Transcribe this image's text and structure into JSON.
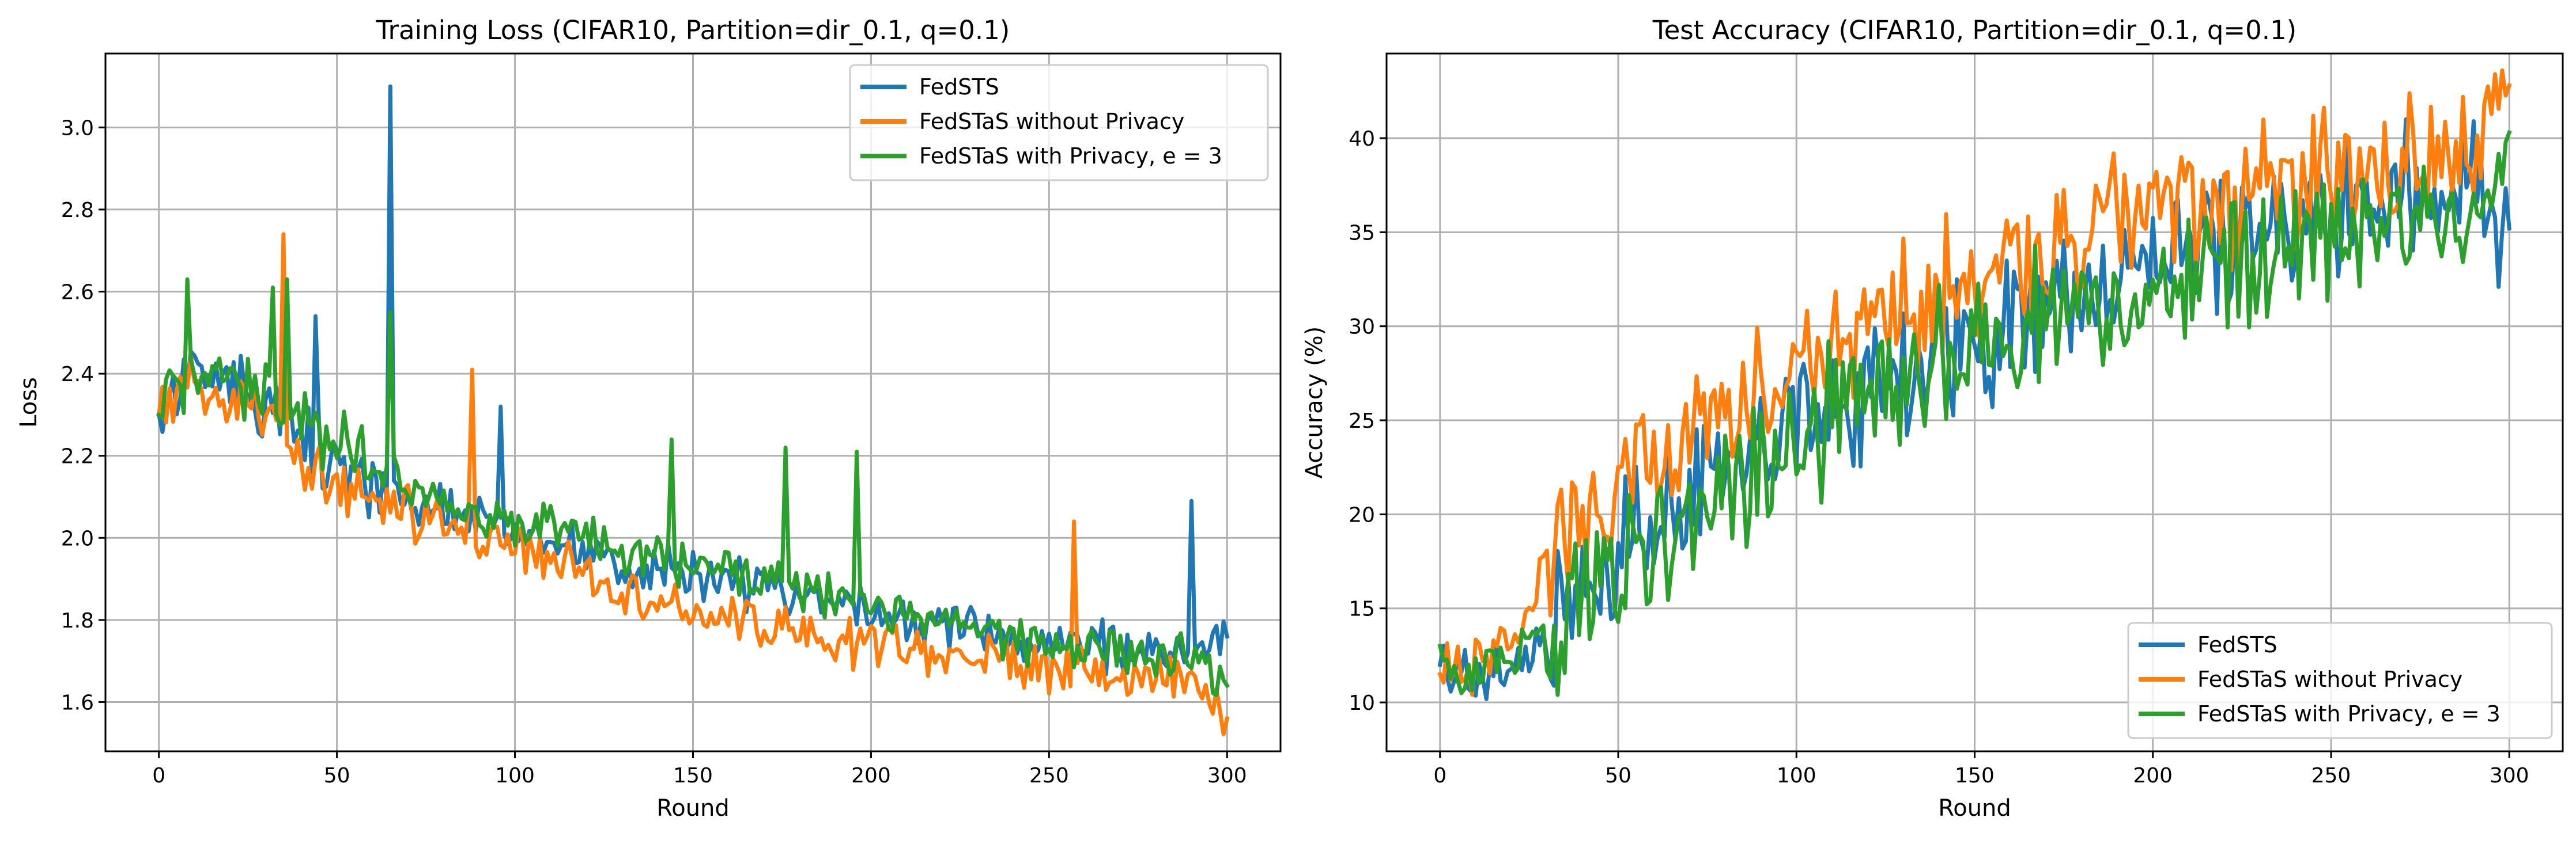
{
  "chart_data": [
    {
      "type": "line",
      "title": "Training Loss (CIFAR10, Partition=dir_0.1, q=0.1)",
      "xlabel": "Round",
      "ylabel": "Loss",
      "xlim": [
        -15,
        315
      ],
      "ylim": [
        1.48,
        3.18
      ],
      "xticks": [
        0,
        50,
        100,
        150,
        200,
        250,
        300
      ],
      "xtick_labels": [
        "0",
        "50",
        "100",
        "150",
        "200",
        "250",
        "300"
      ],
      "yticks": [
        1.6,
        1.8,
        2.0,
        2.2,
        2.4,
        2.6,
        2.8,
        3.0
      ],
      "ytick_labels": [
        "1.6",
        "1.8",
        "2.0",
        "2.2",
        "2.4",
        "2.6",
        "2.8",
        "3.0"
      ],
      "grid": true,
      "legend_position": "top-right",
      "noise": 0.1,
      "seed": 11,
      "series": [
        {
          "name": "FedSTS",
          "color": "#1f77b4",
          "x": [
            0,
            10,
            20,
            30,
            40,
            50,
            60,
            70,
            80,
            90,
            100,
            110,
            120,
            130,
            140,
            150,
            160,
            170,
            180,
            190,
            200,
            210,
            220,
            230,
            240,
            250,
            260,
            270,
            280,
            290,
            300
          ],
          "y": [
            2.3,
            2.42,
            2.38,
            2.33,
            2.26,
            2.18,
            2.13,
            2.09,
            2.07,
            2.04,
            2.01,
            1.98,
            1.96,
            1.95,
            1.93,
            1.92,
            1.9,
            1.87,
            1.85,
            1.83,
            1.82,
            1.8,
            1.79,
            1.77,
            1.76,
            1.75,
            1.74,
            1.73,
            1.72,
            1.71,
            1.76
          ],
          "peaks": [
            [
              65,
              3.1
            ],
            [
              44,
              2.54
            ],
            [
              96,
              2.32
            ],
            [
              290,
              2.09
            ]
          ]
        },
        {
          "name": "FedSTaS without Privacy",
          "color": "#ff7f0e",
          "x": [
            0,
            10,
            20,
            30,
            40,
            50,
            60,
            70,
            80,
            90,
            100,
            110,
            120,
            130,
            140,
            150,
            160,
            170,
            180,
            190,
            200,
            210,
            220,
            230,
            240,
            250,
            260,
            270,
            280,
            290,
            300
          ],
          "y": [
            2.3,
            2.38,
            2.33,
            2.28,
            2.17,
            2.12,
            2.09,
            2.06,
            2.04,
            2.01,
            1.98,
            1.95,
            1.92,
            1.88,
            1.85,
            1.82,
            1.8,
            1.78,
            1.76,
            1.75,
            1.74,
            1.73,
            1.72,
            1.71,
            1.7,
            1.69,
            1.68,
            1.67,
            1.66,
            1.65,
            1.56
          ],
          "peaks": [
            [
              35,
              2.74
            ],
            [
              88,
              2.41
            ],
            [
              257,
              2.04
            ]
          ]
        },
        {
          "name": "FedSTaS with Privacy, e = 3",
          "color": "#2ca02c",
          "x": [
            0,
            10,
            20,
            30,
            40,
            50,
            60,
            70,
            80,
            90,
            100,
            110,
            120,
            130,
            140,
            150,
            160,
            170,
            180,
            190,
            200,
            210,
            220,
            230,
            240,
            250,
            260,
            270,
            280,
            290,
            300
          ],
          "y": [
            2.3,
            2.42,
            2.4,
            2.35,
            2.27,
            2.23,
            2.18,
            2.13,
            2.09,
            2.06,
            2.04,
            2.02,
            2.0,
            1.98,
            1.96,
            1.94,
            1.92,
            1.9,
            1.88,
            1.86,
            1.84,
            1.82,
            1.8,
            1.78,
            1.76,
            1.74,
            1.73,
            1.72,
            1.71,
            1.7,
            1.64
          ],
          "peaks": [
            [
              8,
              2.63
            ],
            [
              32,
              2.61
            ],
            [
              36,
              2.63
            ],
            [
              65,
              2.55
            ],
            [
              144,
              2.24
            ],
            [
              176,
              2.22
            ],
            [
              196,
              2.21
            ]
          ]
        }
      ]
    },
    {
      "type": "line",
      "title": "Test Accuracy (CIFAR10, Partition=dir_0.1, q=0.1)",
      "xlabel": "Round",
      "ylabel": "Accuracy (%)",
      "xlim": [
        -15,
        315
      ],
      "ylim": [
        7.4,
        44.5
      ],
      "xticks": [
        0,
        50,
        100,
        150,
        200,
        250,
        300
      ],
      "xtick_labels": [
        "0",
        "50",
        "100",
        "150",
        "200",
        "250",
        "300"
      ],
      "yticks": [
        10,
        15,
        20,
        25,
        30,
        35,
        40
      ],
      "ytick_labels": [
        "10",
        "15",
        "20",
        "25",
        "30",
        "35",
        "40"
      ],
      "grid": true,
      "legend_position": "bottom-right",
      "noise": 5.5,
      "seed": 23,
      "series": [
        {
          "name": "FedSTS",
          "color": "#1f77b4",
          "x": [
            0,
            10,
            20,
            30,
            40,
            50,
            60,
            70,
            80,
            90,
            100,
            110,
            120,
            130,
            140,
            150,
            160,
            170,
            180,
            190,
            200,
            210,
            220,
            230,
            240,
            250,
            260,
            270,
            280,
            290,
            300
          ],
          "y": [
            12.0,
            11.0,
            12.0,
            14.0,
            16.0,
            18.0,
            19.5,
            21.0,
            22.5,
            23.5,
            25.0,
            26.0,
            27.0,
            28.0,
            29.0,
            29.5,
            30.5,
            31.5,
            32.0,
            33.0,
            33.5,
            34.0,
            34.5,
            35.0,
            35.5,
            36.0,
            36.5,
            37.0,
            37.0,
            37.5,
            35.2
          ]
        },
        {
          "name": "FedSTaS without Privacy",
          "color": "#ff7f0e",
          "x": [
            0,
            10,
            20,
            30,
            40,
            50,
            60,
            70,
            80,
            90,
            100,
            110,
            120,
            130,
            140,
            150,
            160,
            170,
            180,
            190,
            200,
            210,
            220,
            230,
            240,
            250,
            260,
            270,
            280,
            290,
            300
          ],
          "y": [
            11.5,
            12.0,
            14.0,
            17.0,
            20.0,
            22.0,
            23.0,
            24.0,
            25.5,
            26.5,
            28.0,
            29.0,
            30.0,
            31.0,
            32.0,
            33.0,
            33.5,
            34.5,
            35.0,
            35.5,
            36.0,
            36.5,
            37.0,
            37.5,
            38.0,
            38.5,
            38.5,
            39.0,
            39.0,
            39.5,
            42.8
          ]
        },
        {
          "name": "FedSTaS with Privacy, e = 3",
          "color": "#2ca02c",
          "x": [
            0,
            10,
            20,
            30,
            40,
            50,
            60,
            70,
            80,
            90,
            100,
            110,
            120,
            130,
            140,
            150,
            160,
            170,
            180,
            190,
            200,
            210,
            220,
            230,
            240,
            250,
            260,
            270,
            280,
            290,
            300
          ],
          "y": [
            13.0,
            11.5,
            12.5,
            13.5,
            15.5,
            17.0,
            18.5,
            20.0,
            21.0,
            22.5,
            24.0,
            25.0,
            26.0,
            27.0,
            28.0,
            29.0,
            30.0,
            30.5,
            31.0,
            31.5,
            32.0,
            32.5,
            33.0,
            33.5,
            34.0,
            34.5,
            35.0,
            35.5,
            36.0,
            36.5,
            40.3
          ]
        }
      ]
    }
  ]
}
